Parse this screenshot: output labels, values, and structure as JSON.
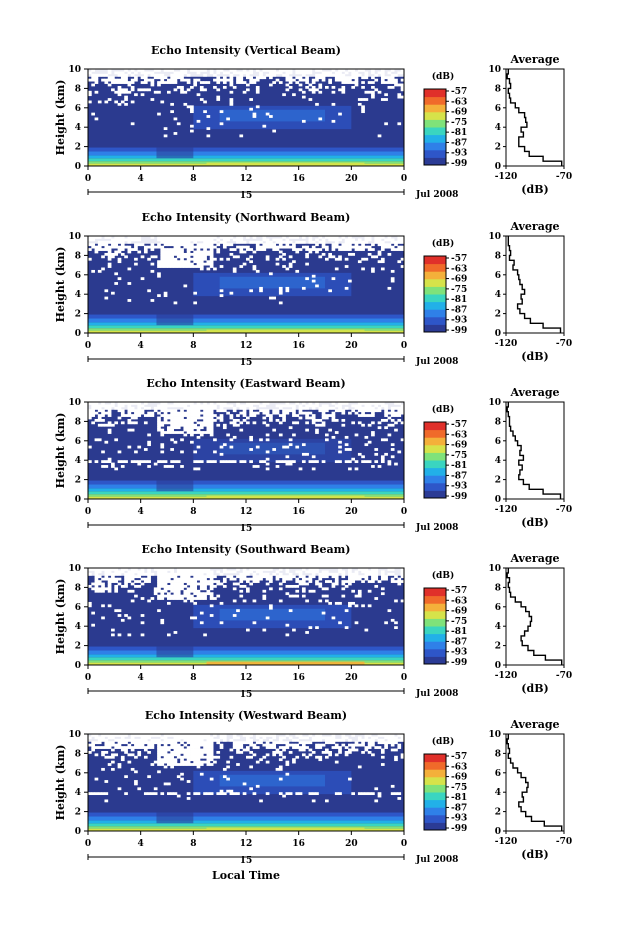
{
  "figure": {
    "bottom_xlabel": "Local Time",
    "date_label": "Jul 2008",
    "day_label": "15",
    "colorbar_label": "(dB)",
    "colorbar_ticks": [
      "-57",
      "-63",
      "-69",
      "-75",
      "-81",
      "-87",
      "-93",
      "-99"
    ],
    "average_title": "Average",
    "average_xlabel": "(dB)",
    "average_xticks": [
      "-120",
      "-70"
    ]
  },
  "chart_data": [
    {
      "type": "heatmap",
      "title": "Echo Intensity (Vertical Beam)",
      "ylabel": "Height (km)",
      "x_ticks": [
        "0",
        "4",
        "8",
        "12",
        "16",
        "20",
        "0"
      ],
      "y_ticks": [
        "0",
        "2",
        "4",
        "6",
        "8",
        "10"
      ],
      "xlim": [
        0,
        24
      ],
      "ylim": [
        0,
        10
      ],
      "color_range_db": [
        -99,
        -57
      ],
      "average_profile": {
        "xlim": [
          -120,
          -70
        ],
        "height_km": [
          0,
          0.5,
          1,
          1.5,
          2,
          2.5,
          3,
          3.5,
          4,
          4.5,
          5,
          5.5,
          6,
          6.5,
          7,
          7.5,
          8,
          8.5,
          9,
          9.5
        ],
        "db": [
          -72,
          -88,
          -100,
          -104,
          -109,
          -109,
          -105,
          -107,
          -102,
          -103,
          -104,
          -109,
          -112,
          -116,
          -117,
          -118,
          -116,
          -117,
          -119,
          -118
        ]
      }
    },
    {
      "type": "heatmap",
      "title": "Echo Intensity (Northward Beam)",
      "ylabel": "Height (km)",
      "x_ticks": [
        "0",
        "4",
        "8",
        "12",
        "16",
        "20",
        "0"
      ],
      "y_ticks": [
        "0",
        "2",
        "4",
        "6",
        "8",
        "10"
      ],
      "xlim": [
        0,
        24
      ],
      "ylim": [
        0,
        10
      ],
      "color_range_db": [
        -99,
        -57
      ],
      "average_profile": {
        "xlim": [
          -120,
          -70
        ],
        "height_km": [
          0,
          0.5,
          1,
          1.5,
          2,
          2.5,
          3,
          3.5,
          4,
          4.5,
          5,
          5.5,
          6,
          6.5,
          7,
          7.5,
          8,
          8.5,
          9,
          9.5
        ],
        "db": [
          -73,
          -88,
          -99,
          -104,
          -108,
          -110,
          -106,
          -107,
          -104,
          -106,
          -108,
          -109,
          -110,
          -114,
          -113,
          -117,
          -116,
          -117,
          -118,
          -118
        ]
      }
    },
    {
      "type": "heatmap",
      "title": "Echo Intensity (Eastward Beam)",
      "ylabel": "Height (km)",
      "x_ticks": [
        "0",
        "4",
        "8",
        "12",
        "16",
        "20",
        "0"
      ],
      "y_ticks": [
        "0",
        "2",
        "4",
        "6",
        "8",
        "10"
      ],
      "xlim": [
        0,
        24
      ],
      "ylim": [
        0,
        10
      ],
      "color_range_db": [
        -99,
        -57
      ],
      "average_profile": {
        "xlim": [
          -120,
          -70
        ],
        "height_km": [
          0,
          0.5,
          1,
          1.5,
          2,
          2.5,
          3,
          3.5,
          4,
          4.5,
          5,
          5.5,
          6,
          6.5,
          7,
          7.5,
          8,
          8.5,
          9,
          9.5
        ],
        "db": [
          -73,
          -88,
          -100,
          -105,
          -109,
          -108,
          -106,
          -109,
          -105,
          -108,
          -107,
          -110,
          -112,
          -114,
          -116,
          -117,
          -117,
          -118,
          -119,
          -118
        ]
      }
    },
    {
      "type": "heatmap",
      "title": "Echo Intensity (Southward Beam)",
      "ylabel": "Height (km)",
      "x_ticks": [
        "0",
        "4",
        "8",
        "12",
        "16",
        "20",
        "0"
      ],
      "y_ticks": [
        "0",
        "2",
        "4",
        "6",
        "8",
        "10"
      ],
      "xlim": [
        0,
        24
      ],
      "ylim": [
        0,
        10
      ],
      "color_range_db": [
        -99,
        -57
      ],
      "average_profile": {
        "xlim": [
          -120,
          -70
        ],
        "height_km": [
          0,
          0.5,
          1,
          1.5,
          2,
          2.5,
          3,
          3.5,
          4,
          4.5,
          5,
          5.5,
          6,
          6.5,
          7,
          7.5,
          8,
          8.5,
          9,
          9.5
        ],
        "db": [
          -72,
          -86,
          -96,
          -101,
          -106,
          -107,
          -104,
          -101,
          -99,
          -98,
          -100,
          -103,
          -107,
          -112,
          -116,
          -117,
          -118,
          -117,
          -119,
          -118
        ]
      }
    },
    {
      "type": "heatmap",
      "title": "Echo Intensity (Westward Beam)",
      "ylabel": "Height (km)",
      "x_ticks": [
        "0",
        "4",
        "8",
        "12",
        "16",
        "20",
        "0"
      ],
      "y_ticks": [
        "0",
        "2",
        "4",
        "6",
        "8",
        "10"
      ],
      "xlim": [
        0,
        24
      ],
      "ylim": [
        0,
        10
      ],
      "color_range_db": [
        -99,
        -57
      ],
      "average_profile": {
        "xlim": [
          -120,
          -70
        ],
        "height_km": [
          0,
          0.5,
          1,
          1.5,
          2,
          2.5,
          3,
          3.5,
          4,
          4.5,
          5,
          5.5,
          6,
          6.5,
          7,
          7.5,
          8,
          8.5,
          9,
          9.5
        ],
        "db": [
          -72,
          -87,
          -98,
          -103,
          -107,
          -109,
          -105,
          -106,
          -102,
          -101,
          -103,
          -107,
          -110,
          -114,
          -116,
          -118,
          -117,
          -118,
          -119,
          -118
        ]
      }
    }
  ],
  "colors": {
    "background_fill": "#2b3a8f",
    "gap": "#ffffff",
    "colormap": [
      "#2b3b95",
      "#2e56c8",
      "#2f80e8",
      "#22b0e8",
      "#3ad5c0",
      "#7fe27a",
      "#d6e34a",
      "#f4b03a",
      "#f06a2a",
      "#e0302a"
    ]
  }
}
